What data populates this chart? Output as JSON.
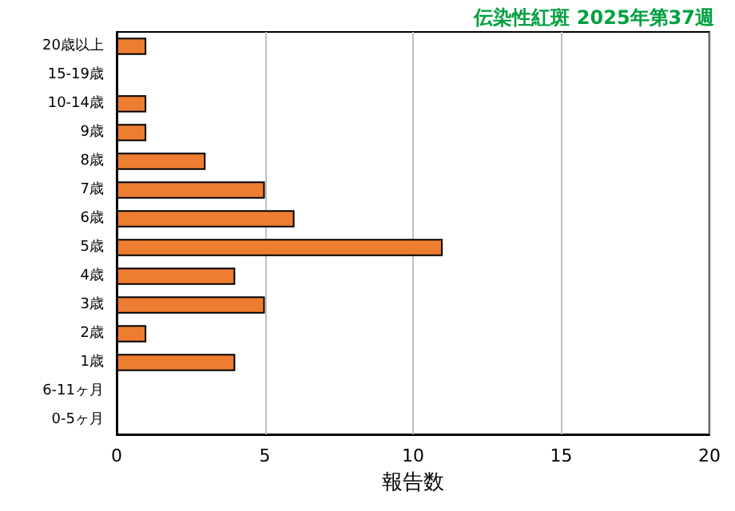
{
  "chart_data": {
    "type": "bar",
    "orientation": "horizontal",
    "title": "伝染性紅斑 2025年第37週",
    "xlabel": "報告数",
    "categories": [
      "20歳以上",
      "15-19歳",
      "10-14歳",
      "9歳",
      "8歳",
      "7歳",
      "6歳",
      "5歳",
      "4歳",
      "3歳",
      "2歳",
      "1歳",
      "6-11ヶ月",
      "0-5ヶ月"
    ],
    "values": [
      1,
      0,
      1,
      1,
      3,
      5,
      6,
      11,
      4,
      5,
      1,
      4,
      0,
      0
    ],
    "color": "#ed7d31",
    "xlim": [
      0,
      20
    ],
    "xticks": [
      0,
      5,
      10,
      15,
      20
    ],
    "grid": "x"
  }
}
